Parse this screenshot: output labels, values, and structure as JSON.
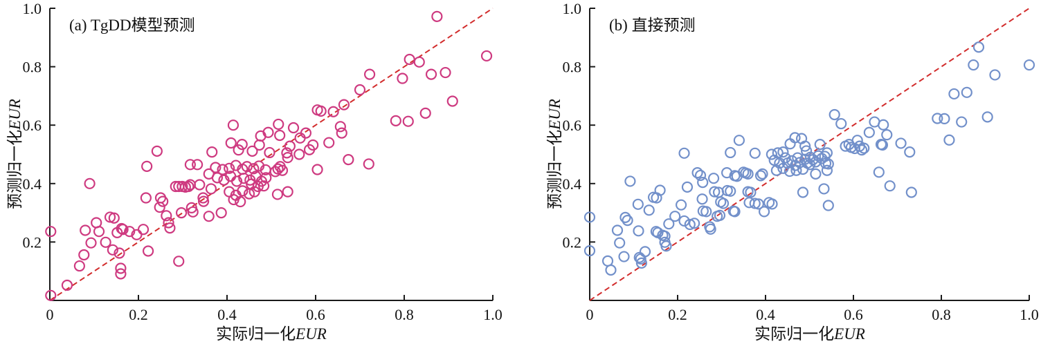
{
  "figure": {
    "background": "#ffffff",
    "axis_color": "#1a1a1a",
    "ref_line_color": "#d22c2c",
    "panel_a_marker_color": "#ce3a80",
    "panel_b_marker_color": "#7290ca"
  },
  "chart_data": [
    {
      "type": "scatter",
      "title": "(a) TgDD模型预测",
      "xlabel": "实际归一化EUR",
      "ylabel": "预测归一化EUR",
      "xlabel_cn": "实际归一化",
      "xlabel_it": "EUR",
      "ylabel_cn": "预测归一化",
      "ylabel_it": "EUR",
      "xlim": [
        0,
        1.0
      ],
      "ylim": [
        0,
        1.0
      ],
      "xticks": [
        "0",
        "0.2",
        "0.4",
        "0.6",
        "0.8",
        "1.0"
      ],
      "yticks": [
        "0",
        "0.2",
        "0.4",
        "0.6",
        "0.8",
        "1.0"
      ],
      "grid": false,
      "legend": "none",
      "marker": "open-circle",
      "marker_color": "#ce3a80",
      "ref_line": {
        "from": [
          0,
          0
        ],
        "to": [
          1,
          1
        ],
        "color": "#d22c2c",
        "style": "dashed"
      },
      "points": [
        [
          0.002,
          0.236
        ],
        [
          0.002,
          0.017
        ],
        [
          0.039,
          0.052
        ],
        [
          0.067,
          0.118
        ],
        [
          0.08,
          0.24
        ],
        [
          0.09,
          0.4
        ],
        [
          0.093,
          0.197
        ],
        [
          0.077,
          0.156
        ],
        [
          0.105,
          0.266
        ],
        [
          0.111,
          0.236
        ],
        [
          0.126,
          0.199
        ],
        [
          0.136,
          0.285
        ],
        [
          0.142,
          0.173
        ],
        [
          0.145,
          0.282
        ],
        [
          0.157,
          0.162
        ],
        [
          0.16,
          0.11
        ],
        [
          0.16,
          0.091
        ],
        [
          0.162,
          0.246
        ],
        [
          0.152,
          0.232
        ],
        [
          0.165,
          0.243
        ],
        [
          0.18,
          0.236
        ],
        [
          0.196,
          0.225
        ],
        [
          0.211,
          0.243
        ],
        [
          0.219,
          0.459
        ],
        [
          0.217,
          0.351
        ],
        [
          0.222,
          0.169
        ],
        [
          0.242,
          0.511
        ],
        [
          0.25,
          0.351
        ],
        [
          0.255,
          0.339
        ],
        [
          0.248,
          0.319
        ],
        [
          0.263,
          0.29
        ],
        [
          0.268,
          0.266
        ],
        [
          0.271,
          0.248
        ],
        [
          0.284,
          0.39
        ],
        [
          0.291,
          0.39
        ],
        [
          0.299,
          0.39
        ],
        [
          0.306,
          0.388
        ],
        [
          0.313,
          0.39
        ],
        [
          0.317,
          0.396
        ],
        [
          0.297,
          0.3
        ],
        [
          0.291,
          0.134
        ],
        [
          0.317,
          0.465
        ],
        [
          0.333,
          0.465
        ],
        [
          0.32,
          0.317
        ],
        [
          0.323,
          0.303
        ],
        [
          0.338,
          0.396
        ],
        [
          0.346,
          0.351
        ],
        [
          0.347,
          0.339
        ],
        [
          0.359,
          0.433
        ],
        [
          0.364,
          0.382
        ],
        [
          0.359,
          0.288
        ],
        [
          0.387,
          0.3
        ],
        [
          0.366,
          0.508
        ],
        [
          0.409,
          0.539
        ],
        [
          0.414,
          0.6
        ],
        [
          0.434,
          0.534
        ],
        [
          0.426,
          0.515
        ],
        [
          0.457,
          0.511
        ],
        [
          0.473,
          0.532
        ],
        [
          0.476,
          0.563
        ],
        [
          0.496,
          0.506
        ],
        [
          0.374,
          0.455
        ],
        [
          0.39,
          0.448
        ],
        [
          0.405,
          0.452
        ],
        [
          0.42,
          0.462
        ],
        [
          0.435,
          0.449
        ],
        [
          0.445,
          0.458
        ],
        [
          0.46,
          0.451
        ],
        [
          0.472,
          0.46
        ],
        [
          0.487,
          0.447
        ],
        [
          0.378,
          0.42
        ],
        [
          0.393,
          0.412
        ],
        [
          0.408,
          0.425
        ],
        [
          0.422,
          0.408
        ],
        [
          0.438,
          0.418
        ],
        [
          0.452,
          0.412
        ],
        [
          0.465,
          0.425
        ],
        [
          0.478,
          0.408
        ],
        [
          0.488,
          0.42
        ],
        [
          0.455,
          0.398
        ],
        [
          0.47,
          0.39
        ],
        [
          0.483,
          0.392
        ],
        [
          0.405,
          0.372
        ],
        [
          0.42,
          0.36
        ],
        [
          0.435,
          0.375
        ],
        [
          0.45,
          0.365
        ],
        [
          0.462,
          0.372
        ],
        [
          0.415,
          0.345
        ],
        [
          0.43,
          0.338
        ],
        [
          0.509,
          0.441
        ],
        [
          0.515,
          0.45
        ],
        [
          0.52,
          0.458
        ],
        [
          0.525,
          0.445
        ],
        [
          0.537,
          0.489
        ],
        [
          0.604,
          0.448
        ],
        [
          0.674,
          0.482
        ],
        [
          0.72,
          0.467
        ],
        [
          0.514,
          0.363
        ],
        [
          0.537,
          0.372
        ],
        [
          0.874,
          0.972
        ],
        [
          0.986,
          0.837
        ],
        [
          0.812,
          0.825
        ],
        [
          0.834,
          0.816
        ],
        [
          0.722,
          0.774
        ],
        [
          0.796,
          0.76
        ],
        [
          0.861,
          0.774
        ],
        [
          0.893,
          0.78
        ],
        [
          0.7,
          0.721
        ],
        [
          0.909,
          0.682
        ],
        [
          0.664,
          0.67
        ],
        [
          0.64,
          0.646
        ],
        [
          0.604,
          0.652
        ],
        [
          0.612,
          0.648
        ],
        [
          0.848,
          0.641
        ],
        [
          0.781,
          0.615
        ],
        [
          0.809,
          0.613
        ],
        [
          0.516,
          0.603
        ],
        [
          0.55,
          0.591
        ],
        [
          0.656,
          0.595
        ],
        [
          0.659,
          0.573
        ],
        [
          0.493,
          0.575
        ],
        [
          0.519,
          0.565
        ],
        [
          0.565,
          0.556
        ],
        [
          0.578,
          0.573
        ],
        [
          0.542,
          0.528
        ],
        [
          0.63,
          0.54
        ],
        [
          0.586,
          0.516
        ],
        [
          0.594,
          0.532
        ],
        [
          0.535,
          0.505
        ],
        [
          0.563,
          0.5
        ]
      ]
    },
    {
      "type": "scatter",
      "title": "(b) 直接预测",
      "xlabel": "实际归一化EUR",
      "ylabel": "预测归一化EUR",
      "xlabel_cn": "实际归一化",
      "xlabel_it": "EUR",
      "ylabel_cn": "预测归一化",
      "ylabel_it": "EUR",
      "xlim": [
        0,
        1.0
      ],
      "ylim": [
        0,
        1.0
      ],
      "xticks": [
        "0",
        "0.2",
        "0.4",
        "0.6",
        "0.8",
        "1.0"
      ],
      "yticks": [
        "0",
        "0.2",
        "0.4",
        "0.6",
        "0.8",
        "1.0"
      ],
      "grid": false,
      "legend": "none",
      "marker": "open-circle",
      "marker_color": "#7290ca",
      "ref_line": {
        "from": [
          0,
          0
        ],
        "to": [
          1,
          1
        ],
        "color": "#d22c2c",
        "style": "dashed"
      },
      "points": [
        [
          0.0,
          0.285
        ],
        [
          0.0,
          0.17
        ],
        [
          0.041,
          0.135
        ],
        [
          0.048,
          0.104
        ],
        [
          0.063,
          0.24
        ],
        [
          0.068,
          0.197
        ],
        [
          0.078,
          0.15
        ],
        [
          0.081,
          0.284
        ],
        [
          0.086,
          0.274
        ],
        [
          0.092,
          0.408
        ],
        [
          0.11,
          0.329
        ],
        [
          0.111,
          0.238
        ],
        [
          0.116,
          0.142
        ],
        [
          0.113,
          0.147
        ],
        [
          0.118,
          0.128
        ],
        [
          0.126,
          0.167
        ],
        [
          0.135,
          0.309
        ],
        [
          0.145,
          0.353
        ],
        [
          0.152,
          0.351
        ],
        [
          0.16,
          0.377
        ],
        [
          0.151,
          0.236
        ],
        [
          0.155,
          0.232
        ],
        [
          0.166,
          0.223
        ],
        [
          0.171,
          0.22
        ],
        [
          0.171,
          0.199
        ],
        [
          0.174,
          0.186
        ],
        [
          0.18,
          0.262
        ],
        [
          0.194,
          0.288
        ],
        [
          0.208,
          0.327
        ],
        [
          0.215,
          0.272
        ],
        [
          0.222,
          0.388
        ],
        [
          0.228,
          0.26
        ],
        [
          0.238,
          0.264
        ],
        [
          0.245,
          0.437
        ],
        [
          0.252,
          0.428
        ],
        [
          0.257,
          0.404
        ],
        [
          0.256,
          0.347
        ],
        [
          0.258,
          0.306
        ],
        [
          0.265,
          0.304
        ],
        [
          0.273,
          0.252
        ],
        [
          0.275,
          0.244
        ],
        [
          0.282,
          0.418
        ],
        [
          0.284,
          0.372
        ],
        [
          0.293,
          0.37
        ],
        [
          0.29,
          0.288
        ],
        [
          0.296,
          0.291
        ],
        [
          0.298,
          0.337
        ],
        [
          0.304,
          0.332
        ],
        [
          0.313,
          0.376
        ],
        [
          0.32,
          0.374
        ],
        [
          0.312,
          0.437
        ],
        [
          0.33,
          0.427
        ],
        [
          0.335,
          0.425
        ],
        [
          0.327,
          0.306
        ],
        [
          0.33,
          0.304
        ],
        [
          0.35,
          0.439
        ],
        [
          0.355,
          0.436
        ],
        [
          0.36,
          0.433
        ],
        [
          0.36,
          0.372
        ],
        [
          0.366,
          0.37
        ],
        [
          0.363,
          0.335
        ],
        [
          0.376,
          0.332
        ],
        [
          0.384,
          0.33
        ],
        [
          0.389,
          0.427
        ],
        [
          0.393,
          0.433
        ],
        [
          0.397,
          0.304
        ],
        [
          0.408,
          0.335
        ],
        [
          0.415,
          0.33
        ],
        [
          0.34,
          0.548
        ],
        [
          0.456,
          0.536
        ],
        [
          0.467,
          0.557
        ],
        [
          0.482,
          0.554
        ],
        [
          0.49,
          0.528
        ],
        [
          0.493,
          0.512
        ],
        [
          0.215,
          0.504
        ],
        [
          0.32,
          0.506
        ],
        [
          0.376,
          0.504
        ],
        [
          0.414,
          0.5
        ],
        [
          0.428,
          0.505
        ],
        [
          0.44,
          0.508
        ],
        [
          0.42,
          0.48
        ],
        [
          0.432,
          0.47
        ],
        [
          0.445,
          0.488
        ],
        [
          0.45,
          0.47
        ],
        [
          0.46,
          0.478
        ],
        [
          0.468,
          0.462
        ],
        [
          0.473,
          0.488
        ],
        [
          0.478,
          0.472
        ],
        [
          0.49,
          0.483
        ],
        [
          0.495,
          0.47
        ],
        [
          0.502,
          0.49
        ],
        [
          0.508,
          0.482
        ],
        [
          0.52,
          0.495
        ],
        [
          0.528,
          0.486
        ],
        [
          0.47,
          0.445
        ],
        [
          0.455,
          0.442
        ],
        [
          0.44,
          0.452
        ],
        [
          0.425,
          0.445
        ],
        [
          0.501,
          0.465
        ],
        [
          0.514,
          0.474
        ],
        [
          0.535,
          0.493
        ],
        [
          0.537,
          0.469
        ],
        [
          0.543,
          0.467
        ],
        [
          0.54,
          0.445
        ],
        [
          0.514,
          0.433
        ],
        [
          0.485,
          0.449
        ],
        [
          0.485,
          0.37
        ],
        [
          0.533,
          0.382
        ],
        [
          0.543,
          0.325
        ],
        [
          0.658,
          0.439
        ],
        [
          0.683,
          0.392
        ],
        [
          0.732,
          0.37
        ],
        [
          0.885,
          0.867
        ],
        [
          1.0,
          0.806
        ],
        [
          0.873,
          0.806
        ],
        [
          0.922,
          0.772
        ],
        [
          0.829,
          0.707
        ],
        [
          0.858,
          0.712
        ],
        [
          0.557,
          0.636
        ],
        [
          0.572,
          0.605
        ],
        [
          0.791,
          0.623
        ],
        [
          0.807,
          0.622
        ],
        [
          0.846,
          0.611
        ],
        [
          0.905,
          0.628
        ],
        [
          0.648,
          0.611
        ],
        [
          0.668,
          0.601
        ],
        [
          0.636,
          0.575
        ],
        [
          0.676,
          0.567
        ],
        [
          0.818,
          0.549
        ],
        [
          0.524,
          0.534
        ],
        [
          0.582,
          0.528
        ],
        [
          0.59,
          0.534
        ],
        [
          0.595,
          0.524
        ],
        [
          0.603,
          0.52
        ],
        [
          0.609,
          0.548
        ],
        [
          0.614,
          0.528
        ],
        [
          0.619,
          0.515
        ],
        [
          0.624,
          0.521
        ],
        [
          0.663,
          0.534
        ],
        [
          0.666,
          0.532
        ],
        [
          0.708,
          0.538
        ],
        [
          0.728,
          0.508
        ],
        [
          0.54,
          0.505
        ]
      ]
    }
  ]
}
